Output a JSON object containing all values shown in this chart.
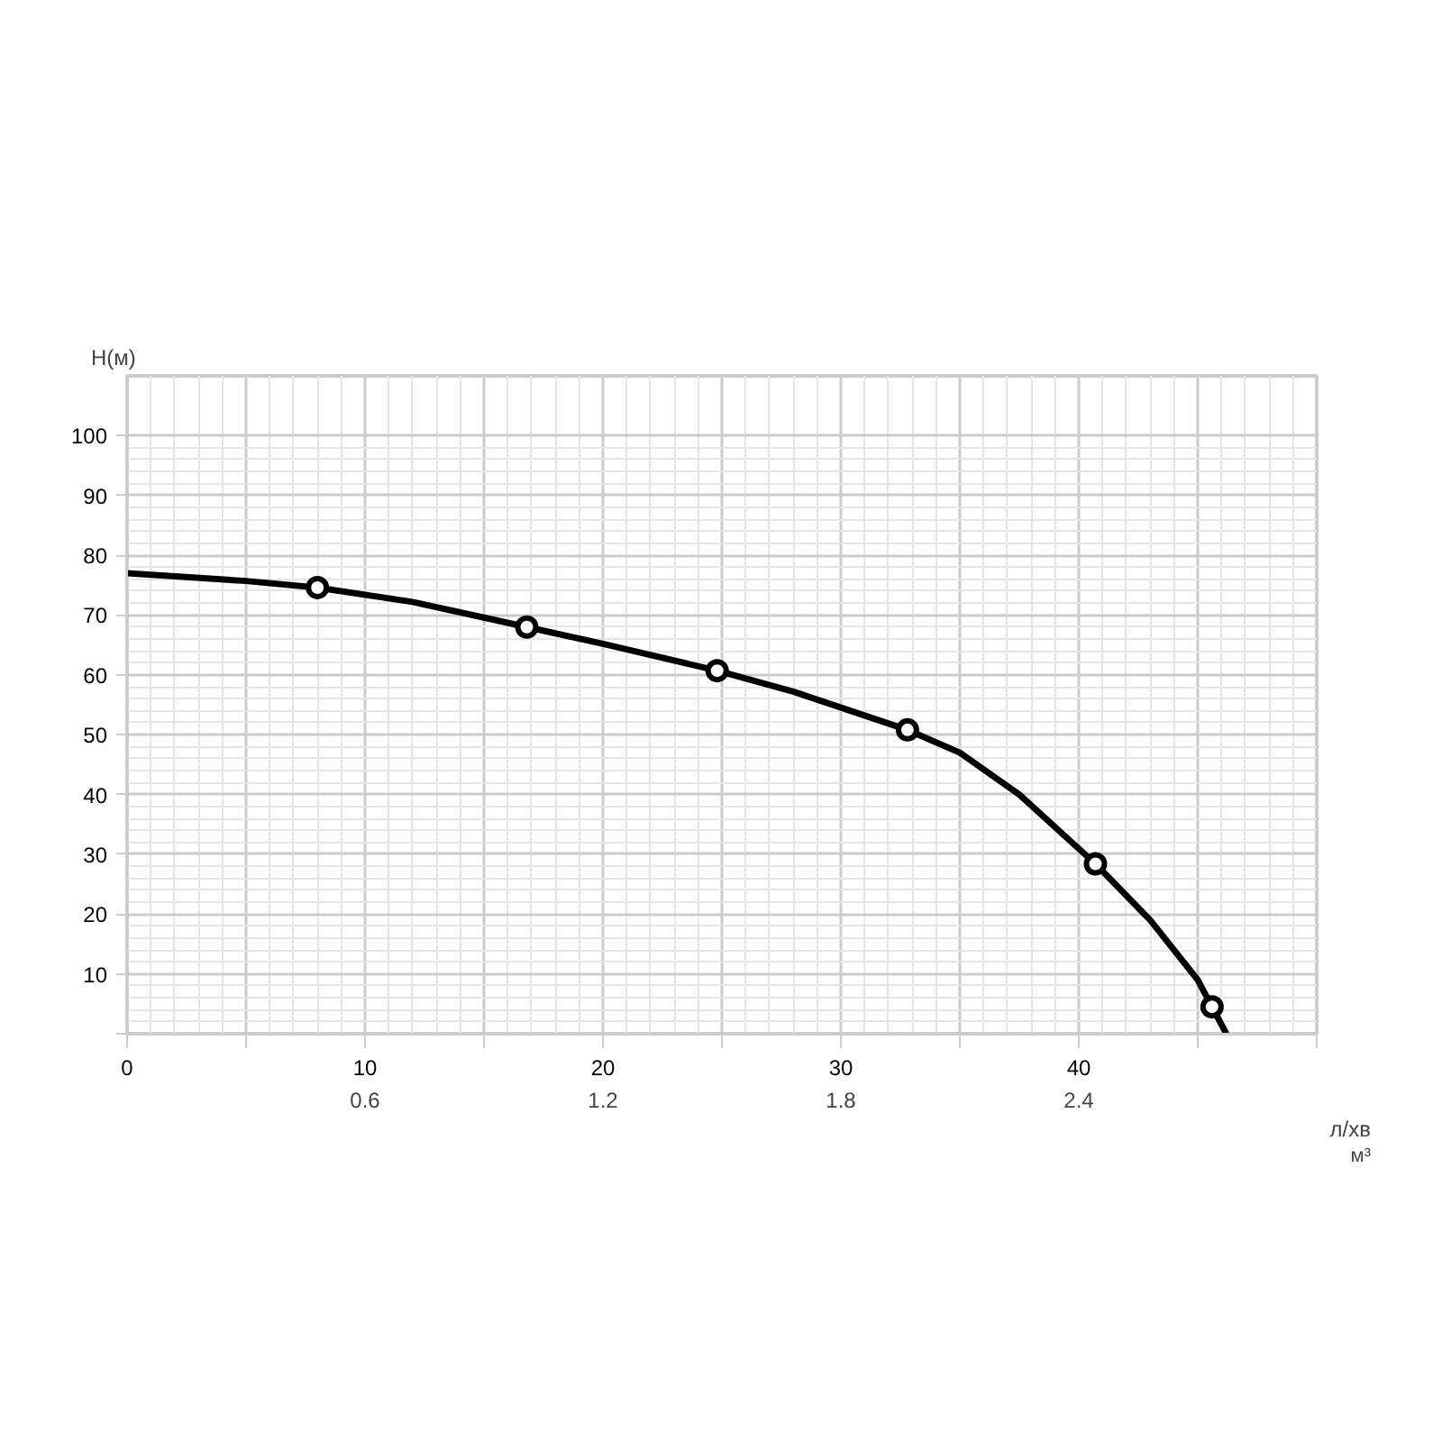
{
  "chart_data": {
    "type": "line",
    "xlabel": "л/хв",
    "ylabel": "H(м)",
    "x2label": "м³",
    "xlim": [
      0,
      50
    ],
    "ylim": [
      0,
      110
    ],
    "xticks": [
      0,
      {
        "value": 5,
        "label": null
      },
      10,
      {
        "value": 15,
        "label": null
      },
      20,
      {
        "value": 25,
        "label": null
      },
      30,
      {
        "value": 35,
        "label": null
      },
      40,
      {
        "value": 45,
        "label": null
      },
      {
        "value": 50,
        "label": null
      }
    ],
    "yticks": [
      {
        "value": 0,
        "label": null
      },
      10,
      20,
      30,
      40,
      50,
      60,
      70,
      80,
      90,
      100
    ],
    "x2lim": [
      0,
      3
    ],
    "x2ticks": [
      0.6,
      1.2,
      1.8,
      2.4
    ],
    "grid": true,
    "series": [
      {
        "color": "#000000",
        "marker": "none",
        "x": [
          0,
          5,
          8,
          12,
          16.8,
          20,
          24.8,
          28,
          32.8,
          35,
          37.5,
          40.7,
          43,
          45,
          45.6,
          46.2
        ],
        "values": [
          77,
          75.7,
          74.6,
          72.2,
          68,
          65.2,
          60.7,
          57.2,
          50.8,
          47,
          40,
          28.4,
          19,
          9,
          4.5,
          0
        ]
      },
      {
        "type": "scatter",
        "color": "#000000",
        "marker": "circle",
        "x": [
          8,
          16.8,
          24.8,
          32.8,
          40.7,
          45.6
        ],
        "values": [
          74.6,
          68,
          60.7,
          50.8,
          28.4,
          4.5
        ]
      }
    ]
  }
}
